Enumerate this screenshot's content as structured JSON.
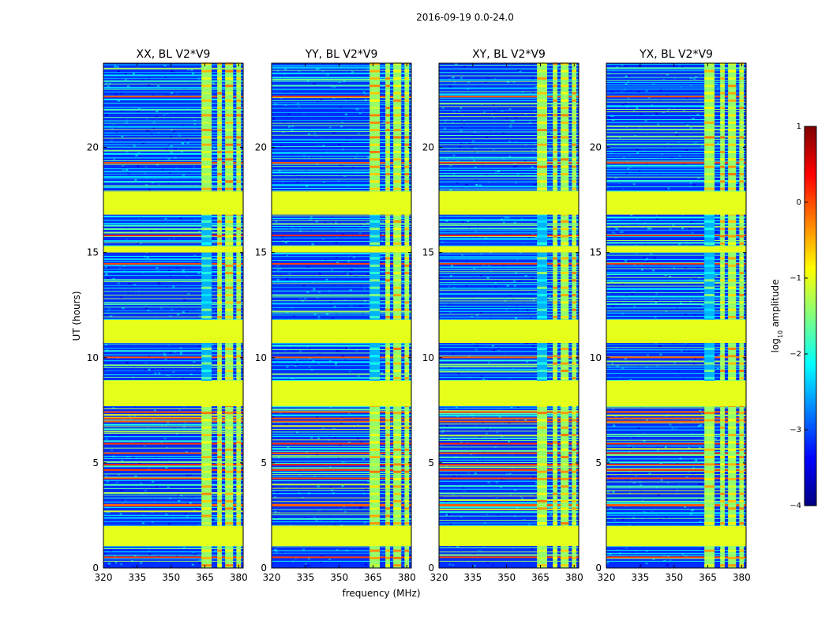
{
  "chart_data": {
    "type": "heatmap",
    "suptitle": "2016-09-19 0.0-24.0",
    "xlabel": "frequency (MHz)",
    "ylabel": "UT (hours)",
    "xlim": [
      320,
      382
    ],
    "ylim": [
      0,
      24
    ],
    "xticks": [
      320,
      335,
      350,
      365,
      380
    ],
    "yticks": [
      0,
      5,
      10,
      15,
      20
    ],
    "panels": [
      {
        "title": "XX, BL V2*V9",
        "polarization": "XX"
      },
      {
        "title": "YY, BL V2*V9",
        "polarization": "YY"
      },
      {
        "title": "XY, BL V2*V9",
        "polarization": "XY"
      },
      {
        "title": "YX, BL V2*V9",
        "polarization": "YX"
      }
    ],
    "flagged_time_ranges_hours": [
      [
        1.05,
        2.0
      ],
      [
        7.7,
        8.9
      ],
      [
        10.7,
        11.8
      ],
      [
        15.0,
        15.3
      ],
      [
        16.8,
        17.9
      ]
    ],
    "flagged_value_log10": -1.0,
    "rfi_channel_bands_mhz": [
      [
        363.5,
        368
      ],
      [
        370.5,
        372.5
      ],
      [
        374,
        377.5
      ],
      [
        379,
        381
      ]
    ],
    "colorbar": {
      "label": "log10 amplitude",
      "min": -4,
      "max": 1,
      "ticks": [
        {
          "value": 1,
          "label": "1"
        },
        {
          "value": 0,
          "label": "0"
        },
        {
          "value": -1,
          "label": "−1"
        },
        {
          "value": -2,
          "label": "−2"
        },
        {
          "value": -3,
          "label": "−3"
        },
        {
          "value": -4,
          "label": "−4"
        }
      ],
      "colormap": "jet"
    }
  }
}
